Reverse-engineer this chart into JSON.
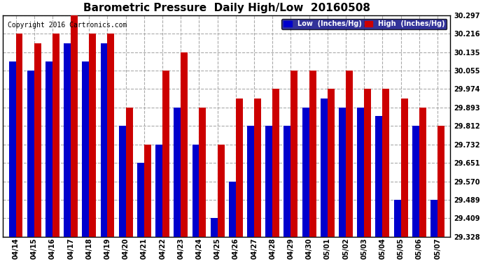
{
  "title": "Barometric Pressure  Daily High/Low  20160508",
  "copyright": "Copyright 2016 Cartronics.com",
  "legend_low": "Low  (Inches/Hg)",
  "legend_high": "High  (Inches/Hg)",
  "dates": [
    "04/14",
    "04/15",
    "04/16",
    "04/17",
    "04/18",
    "04/19",
    "04/20",
    "04/21",
    "04/22",
    "04/23",
    "04/24",
    "04/25",
    "04/26",
    "04/27",
    "04/28",
    "04/29",
    "04/30",
    "05/01",
    "05/02",
    "05/03",
    "05/04",
    "05/05",
    "05/06",
    "05/07"
  ],
  "low": [
    30.095,
    30.055,
    30.095,
    30.175,
    30.095,
    30.175,
    29.812,
    29.651,
    29.732,
    29.893,
    29.732,
    29.409,
    29.57,
    29.812,
    29.812,
    29.812,
    29.893,
    29.933,
    29.893,
    29.893,
    29.855,
    29.489,
    29.812,
    29.489
  ],
  "high": [
    30.216,
    30.175,
    30.216,
    30.297,
    30.216,
    30.216,
    29.893,
    29.732,
    30.055,
    30.135,
    29.893,
    29.732,
    29.933,
    29.933,
    29.974,
    30.055,
    30.055,
    29.974,
    30.055,
    29.974,
    29.974,
    29.933,
    29.893,
    29.812
  ],
  "ylim_min": 29.328,
  "ylim_max": 30.297,
  "yticks": [
    29.328,
    29.409,
    29.489,
    29.57,
    29.651,
    29.732,
    29.812,
    29.893,
    29.974,
    30.055,
    30.135,
    30.216,
    30.297
  ],
  "bar_width": 0.38,
  "low_color": "#0000cc",
  "high_color": "#cc0000",
  "bg_color": "#ffffff",
  "grid_color": "#aaaaaa",
  "title_fontsize": 11,
  "tick_fontsize": 7,
  "copyright_fontsize": 7
}
